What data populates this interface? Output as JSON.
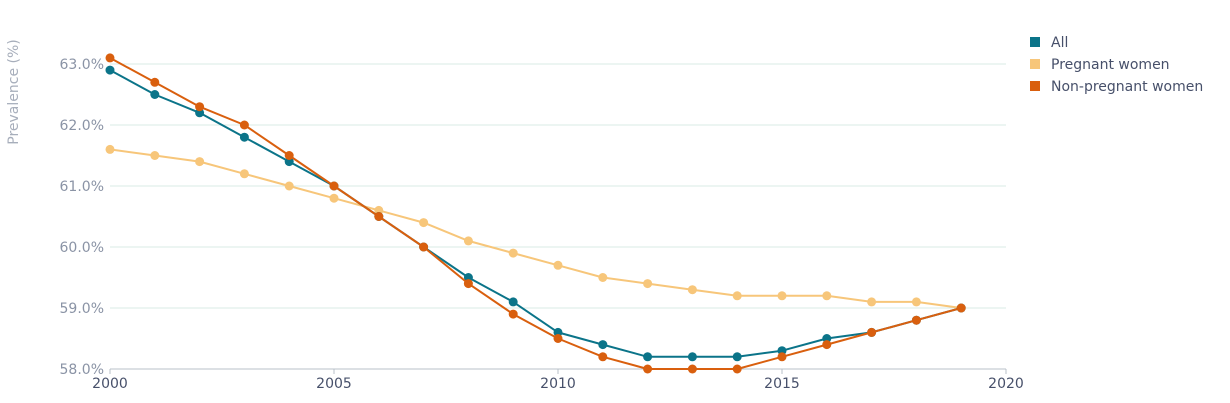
{
  "chart_data": {
    "type": "line",
    "ylabel": "Prevalence (%)",
    "xlabel": "",
    "xlim": [
      2000,
      2020
    ],
    "ylim": [
      58.0,
      63.0
    ],
    "x_ticks": [
      "2000",
      "2005",
      "2010",
      "2015",
      "2020"
    ],
    "y_ticks": [
      "58.0%",
      "59.0%",
      "60.0%",
      "61.0%",
      "62.0%",
      "63.0%"
    ],
    "grid": true,
    "legend_position": "top-right",
    "x": [
      2000,
      2001,
      2002,
      2003,
      2004,
      2005,
      2006,
      2007,
      2008,
      2009,
      2010,
      2011,
      2012,
      2013,
      2014,
      2015,
      2016,
      2017,
      2018,
      2019
    ],
    "series": [
      {
        "name": "All",
        "color": "#0b7489",
        "values": [
          62.9,
          62.5,
          62.2,
          61.8,
          61.4,
          61.0,
          60.5,
          60.0,
          59.5,
          59.1,
          58.6,
          58.4,
          58.2,
          58.2,
          58.2,
          58.3,
          58.5,
          58.6,
          58.8,
          59.0
        ]
      },
      {
        "name": "Pregnant women",
        "color": "#f7c67a",
        "values": [
          61.6,
          61.5,
          61.4,
          61.2,
          61.0,
          60.8,
          60.6,
          60.4,
          60.1,
          59.9,
          59.7,
          59.5,
          59.4,
          59.3,
          59.2,
          59.2,
          59.2,
          59.1,
          59.1,
          59.0
        ]
      },
      {
        "name": "Non-pregnant women",
        "color": "#d95f0e",
        "values": [
          63.1,
          62.7,
          62.3,
          62.0,
          61.5,
          61.0,
          60.5,
          60.0,
          59.4,
          58.9,
          58.5,
          58.2,
          58.0,
          58.0,
          58.0,
          58.2,
          58.4,
          58.6,
          58.8,
          59.0
        ]
      }
    ]
  }
}
